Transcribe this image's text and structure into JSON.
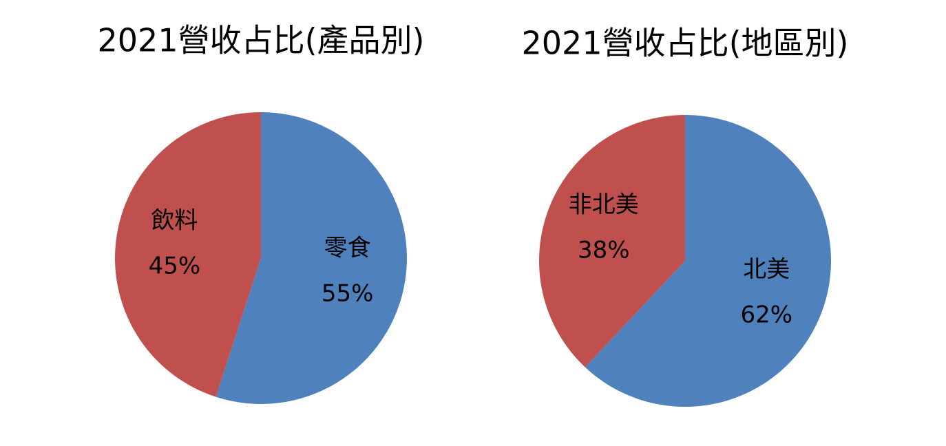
{
  "chart_data": [
    {
      "type": "pie",
      "title": "2021營收占比(產品別)",
      "categories": [
        "零食",
        "飲料"
      ],
      "values": [
        55,
        45
      ],
      "value_labels": [
        "55%",
        "45%"
      ],
      "colors": [
        "#4f81bd",
        "#c0504d"
      ]
    },
    {
      "type": "pie",
      "title": "2021營收占比(地區別)",
      "categories": [
        "北美",
        "非北美"
      ],
      "values": [
        62,
        38
      ],
      "value_labels": [
        "62%",
        "38%"
      ],
      "colors": [
        "#4f81bd",
        "#c0504d"
      ]
    }
  ]
}
